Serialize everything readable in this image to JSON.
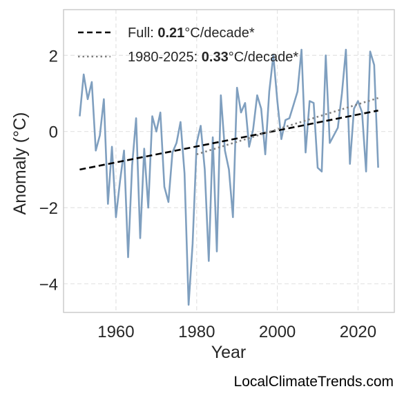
{
  "chart_data": {
    "type": "line",
    "xlabel": "Year",
    "ylabel": "Anomaly (°C)",
    "xlim": [
      1947,
      2029
    ],
    "ylim": [
      -4.75,
      3.2
    ],
    "xticks": [
      1960,
      1980,
      2000,
      2020
    ],
    "yticks": [
      -4,
      -2,
      0,
      2
    ],
    "ytick_labels": [
      "−4",
      "−2",
      "0",
      "2"
    ],
    "grid": true,
    "legend_position": "top-left",
    "series": [
      {
        "name": "",
        "color": "#7f9fbf",
        "style": "solid",
        "x": [
          1951,
          1952,
          1953,
          1954,
          1955,
          1956,
          1957,
          1958,
          1959,
          1960,
          1961,
          1962,
          1963,
          1964,
          1965,
          1966,
          1967,
          1968,
          1969,
          1970,
          1971,
          1972,
          1973,
          1974,
          1975,
          1976,
          1977,
          1978,
          1979,
          1980,
          1981,
          1982,
          1983,
          1984,
          1985,
          1986,
          1987,
          1988,
          1989,
          1990,
          1991,
          1992,
          1993,
          1994,
          1995,
          1996,
          1997,
          1998,
          1999,
          2000,
          2001,
          2002,
          2003,
          2004,
          2005,
          2006,
          2007,
          2008,
          2009,
          2010,
          2011,
          2012,
          2013,
          2014,
          2015,
          2016,
          2017,
          2018,
          2019,
          2020,
          2021,
          2022,
          2023,
          2024,
          2025
        ],
        "y": [
          0.4,
          1.5,
          0.85,
          1.3,
          -0.5,
          -0.1,
          0.85,
          -1.9,
          -0.4,
          -2.25,
          -1.3,
          -0.5,
          -3.3,
          -0.9,
          0.35,
          -2.8,
          -0.45,
          -2.0,
          0.4,
          0.0,
          0.5,
          -1.45,
          -1.85,
          -0.55,
          -0.3,
          0.25,
          -1.1,
          -4.55,
          -2.95,
          -0.3,
          0.15,
          -1.0,
          -3.4,
          -0.15,
          -3.15,
          0.95,
          -0.5,
          -1.0,
          -2.25,
          1.15,
          0.5,
          0.75,
          -0.4,
          0.05,
          0.95,
          0.6,
          -0.6,
          1.05,
          2.0,
          0.8,
          -0.2,
          0.3,
          0.35,
          0.7,
          1.05,
          2.15,
          -0.55,
          0.8,
          0.75,
          -0.95,
          -1.05,
          2.0,
          -0.3,
          -0.1,
          0.1,
          1.0,
          2.15,
          -0.85,
          0.6,
          0.8,
          0.5,
          -1.05,
          2.1,
          1.75,
          -0.95
        ]
      },
      {
        "name": "Full",
        "color": "#000000",
        "style": "dashed",
        "x": [
          1951,
          2025
        ],
        "y": [
          -1.0,
          0.55
        ]
      },
      {
        "name": "1980-2025",
        "color": "#808080",
        "style": "dotted",
        "x": [
          1980,
          2025
        ],
        "y": [
          -0.6,
          0.88
        ]
      }
    ],
    "legend": [
      {
        "label_prefix": "Full: ",
        "value": "0.21",
        "label_suffix": "°C/decade*",
        "style": "dashed",
        "color": "#000000"
      },
      {
        "label_prefix": "1980-2025: ",
        "value": "0.33",
        "label_suffix": "°C/decade*",
        "style": "dotted",
        "color": "#808080"
      }
    ]
  },
  "watermark": "LocalClimateTrends.com"
}
